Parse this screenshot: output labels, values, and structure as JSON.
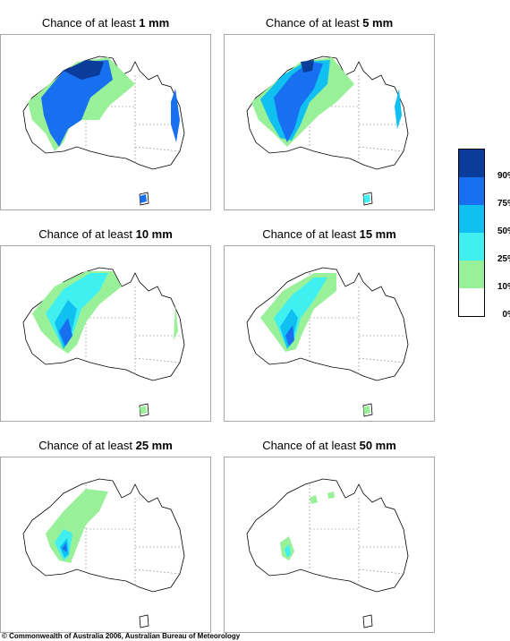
{
  "panels": [
    {
      "prefix": "Chance of at least ",
      "amount": "1 mm"
    },
    {
      "prefix": "Chance of at least ",
      "amount": "5 mm"
    },
    {
      "prefix": "Chance of at least ",
      "amount": "10 mm"
    },
    {
      "prefix": "Chance of at least ",
      "amount": "15 mm"
    },
    {
      "prefix": "Chance of at least ",
      "amount": "25 mm"
    },
    {
      "prefix": "Chance of at least ",
      "amount": "50 mm"
    }
  ],
  "legend": {
    "labels": [
      "90%",
      "75%",
      "50%",
      "25%",
      "10%",
      "0%"
    ],
    "colors": [
      "#0a3c9c",
      "#1870f0",
      "#10c0f0",
      "#40f0f0",
      "#98f098",
      "#ffffff"
    ]
  },
  "copyright": "© Commonwealth of Australia 2006, Australian Bureau of Meteorology"
}
